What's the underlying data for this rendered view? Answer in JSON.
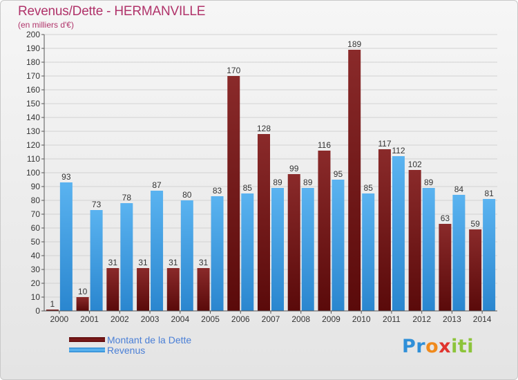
{
  "chart_data": {
    "type": "bar",
    "title": "Revenus/Dette - HERMANVILLE",
    "subtitle": "(en milliers d'€)",
    "categories": [
      "2000",
      "2001",
      "2002",
      "2003",
      "2004",
      "2005",
      "2006",
      "2007",
      "2008",
      "2009",
      "2010",
      "2011",
      "2012",
      "2013",
      "2014"
    ],
    "series": [
      {
        "name": "Montant de la Dette",
        "color": "#7a1a1a",
        "values": [
          1,
          10,
          31,
          31,
          31,
          31,
          170,
          128,
          99,
          116,
          189,
          117,
          102,
          63,
          59
        ]
      },
      {
        "name": "Revenus",
        "color": "#3a9de6",
        "values": [
          93,
          73,
          78,
          87,
          80,
          83,
          85,
          89,
          89,
          95,
          85,
          112,
          89,
          84,
          81
        ]
      }
    ],
    "ylim": [
      0,
      200
    ],
    "ytick_step": 10,
    "grid": true,
    "legend_position": "bottom-left"
  },
  "logo": {
    "letters": [
      "Pr",
      "o",
      "x",
      "iti"
    ]
  }
}
